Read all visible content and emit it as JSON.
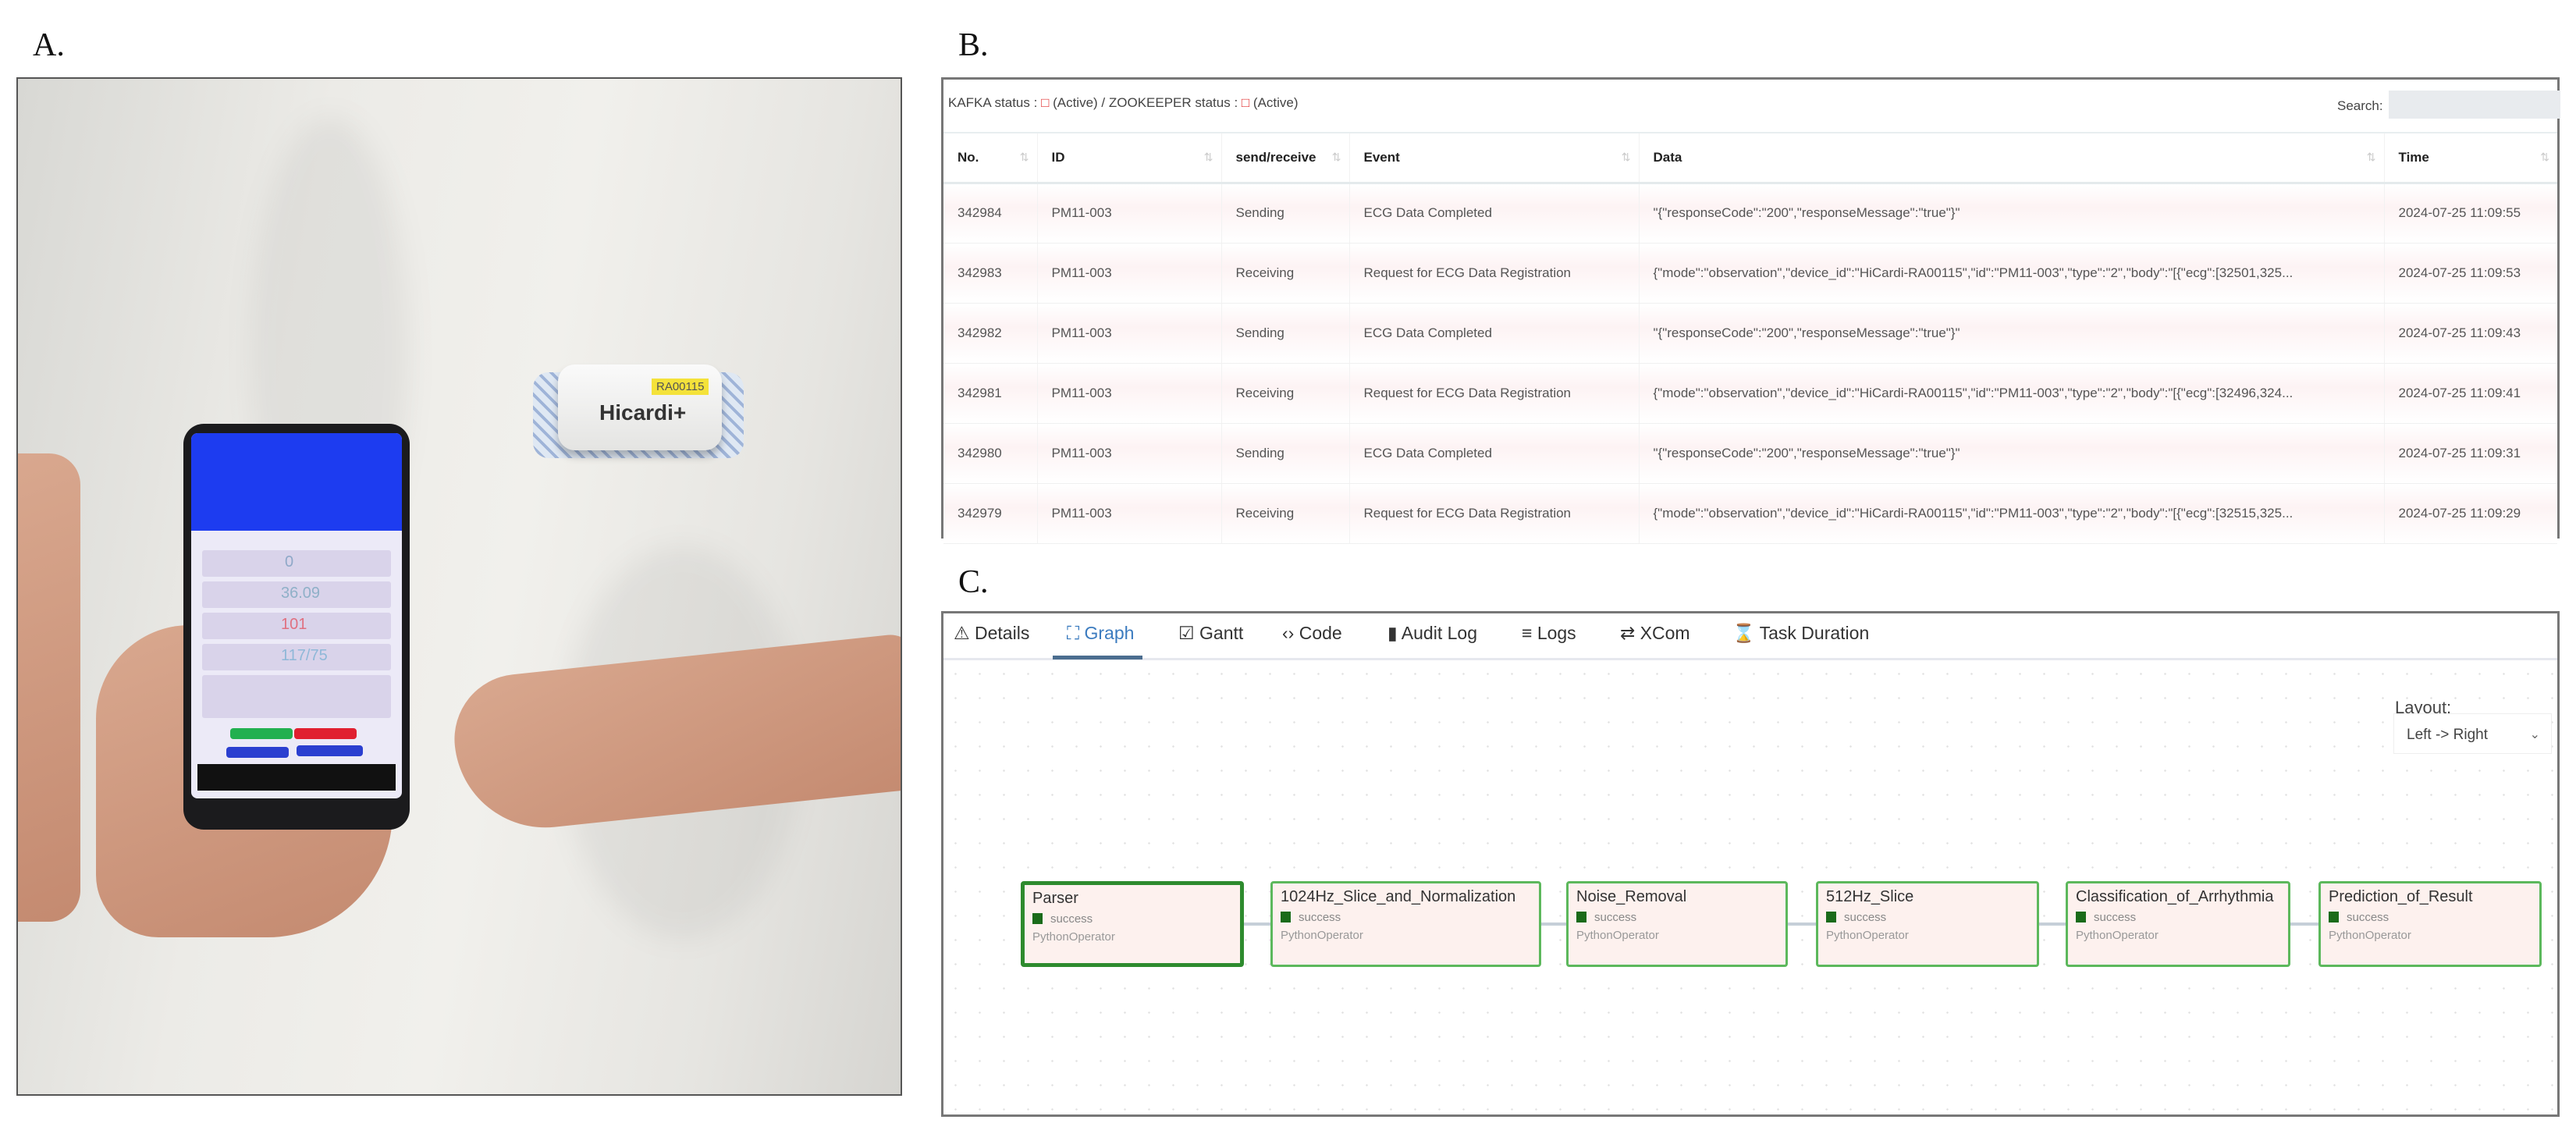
{
  "figure_labels": {
    "a": "A.",
    "b": "B.",
    "c": "C."
  },
  "photo": {
    "patch_brand": "Hicardi+",
    "patch_serial": "RA00115",
    "phone_values": [
      "0",
      "36.09",
      "101",
      "117/75"
    ]
  },
  "monitor": {
    "status": {
      "kafka_label": "KAFKA status : ",
      "kafka_icon": "□",
      "kafka_state": " (Active)",
      "separator": " / ",
      "zookeeper_label": "ZOOKEEPER status : ",
      "zookeeper_icon": "□",
      "zookeeper_state": " (Active)"
    },
    "search_label": "Search:",
    "search_value": "",
    "columns": [
      "No.",
      "ID",
      "send/receive",
      "Event",
      "Data",
      "Time"
    ],
    "rows": [
      [
        "342984",
        "PM11-003",
        "Sending",
        "ECG Data Completed",
        "\"{\"responseCode\":\"200\",\"responseMessage\":\"true\"}\"",
        "2024-07-25 11:09:55"
      ],
      [
        "342983",
        "PM11-003",
        "Receiving",
        "Request for ECG Data Registration",
        "{\"mode\":\"observation\",\"device_id\":\"HiCardi-RA00115\",\"id\":\"PM11-003\",\"type\":\"2\",\"body\":\"[{\"ecg\":[32501,325...",
        "2024-07-25 11:09:53"
      ],
      [
        "342982",
        "PM11-003",
        "Sending",
        "ECG Data Completed",
        "\"{\"responseCode\":\"200\",\"responseMessage\":\"true\"}\"",
        "2024-07-25 11:09:43"
      ],
      [
        "342981",
        "PM11-003",
        "Receiving",
        "Request for ECG Data Registration",
        "{\"mode\":\"observation\",\"device_id\":\"HiCardi-RA00115\",\"id\":\"PM11-003\",\"type\":\"2\",\"body\":\"[{\"ecg\":[32496,324...",
        "2024-07-25 11:09:41"
      ],
      [
        "342980",
        "PM11-003",
        "Sending",
        "ECG Data Completed",
        "\"{\"responseCode\":\"200\",\"responseMessage\":\"true\"}\"",
        "2024-07-25 11:09:31"
      ],
      [
        "342979",
        "PM11-003",
        "Receiving",
        "Request for ECG Data Registration",
        "{\"mode\":\"observation\",\"device_id\":\"HiCardi-RA00115\",\"id\":\"PM11-003\",\"type\":\"2\",\"body\":\"[{\"ecg\":[32515,325...",
        "2024-07-25 11:09:29"
      ]
    ]
  },
  "dag": {
    "tabs": [
      {
        "label": "Details",
        "icon": "warning-icon",
        "glyph": "⚠"
      },
      {
        "label": "Graph",
        "icon": "graph-icon",
        "glyph": "⛶",
        "active": true
      },
      {
        "label": "Gantt",
        "icon": "gantt-icon",
        "glyph": "☑"
      },
      {
        "label": "Code",
        "icon": "code-icon",
        "glyph": "‹›"
      },
      {
        "label": "Audit Log",
        "icon": "audit-log-icon",
        "glyph": "▮"
      },
      {
        "label": "Logs",
        "icon": "list-icon",
        "glyph": "≡"
      },
      {
        "label": "XCom",
        "icon": "exchange-icon",
        "glyph": "⇄"
      },
      {
        "label": "Task Duration",
        "icon": "hourglass-icon",
        "glyph": "⌛"
      }
    ],
    "layout_label": "Layout:",
    "layout_value": "Left -> Right",
    "nodes": [
      {
        "name": "Parser",
        "state": "success",
        "operator": "PythonOperator"
      },
      {
        "name": "1024Hz_Slice_and_Normalization",
        "state": "success",
        "operator": "PythonOperator"
      },
      {
        "name": "Noise_Removal",
        "state": "success",
        "operator": "PythonOperator"
      },
      {
        "name": "512Hz_Slice",
        "state": "success",
        "operator": "PythonOperator"
      },
      {
        "name": "Classification_of_Arrhythmia",
        "state": "success",
        "operator": "PythonOperator"
      },
      {
        "name": "Prediction_of_Result",
        "state": "success",
        "operator": "PythonOperator"
      }
    ],
    "colors": {
      "success": "#1a6b1a",
      "node_border": "#5cb85c",
      "node_fill": "#fdf1ee",
      "active_tab": "#3b7bbf"
    }
  }
}
